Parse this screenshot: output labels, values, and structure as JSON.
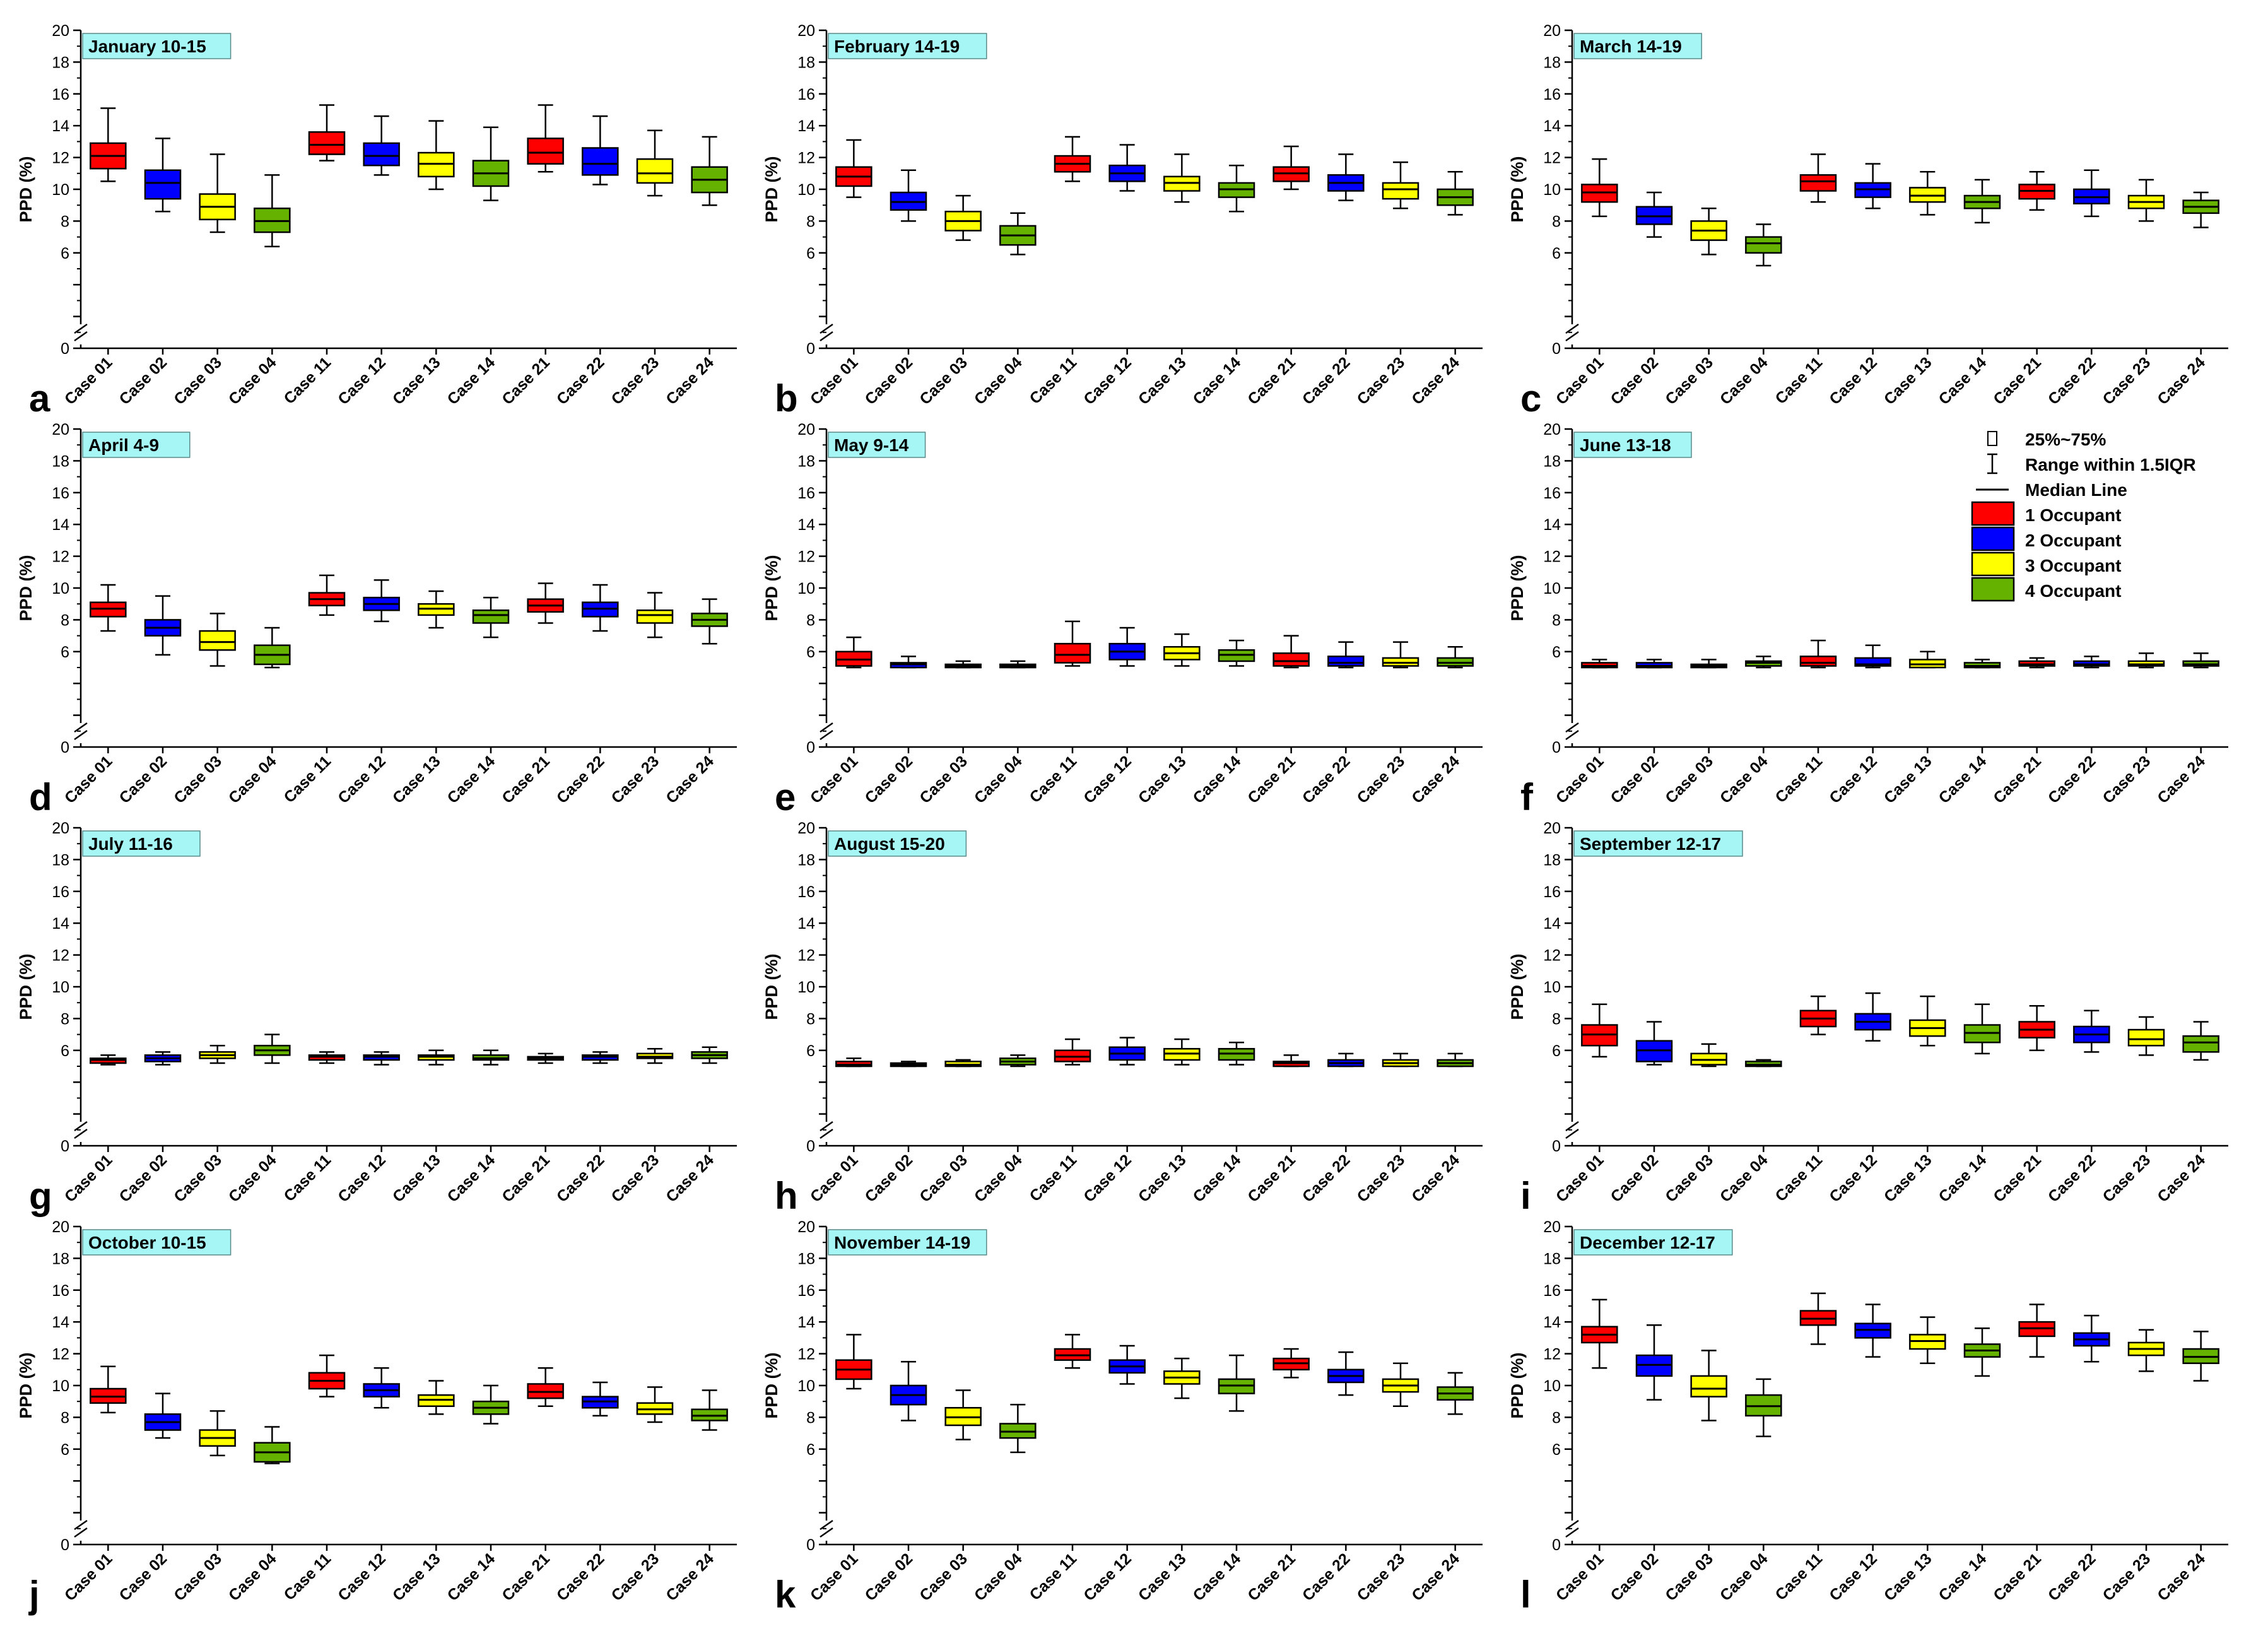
{
  "chart_data": {
    "type": "boxplot",
    "ylabel": "PPD (%)",
    "ylim": [
      0,
      20
    ],
    "yticks": [
      0,
      2,
      4,
      6,
      8,
      10,
      12,
      14,
      16,
      18,
      20
    ],
    "ytick_labels": [
      "0",
      "",
      "",
      "6",
      "8",
      "10",
      "12",
      "14",
      "16",
      "18",
      "20"
    ],
    "y_axis_break": true,
    "categories": [
      "Case 01",
      "Case 02",
      "Case 03",
      "Case 04",
      "Case 11",
      "Case 12",
      "Case 13",
      "Case 14",
      "Case 21",
      "Case 22",
      "Case 23",
      "Case 24"
    ],
    "category_groups": [
      "1 Occupant",
      "2 Occupant",
      "3 Occupant",
      "4 Occupant",
      "1 Occupant",
      "2 Occupant",
      "3 Occupant",
      "4 Occupant",
      "1 Occupant",
      "2 Occupant",
      "3 Occupant",
      "4 Occupant"
    ],
    "stat_order": [
      "whisker_low",
      "q1",
      "median",
      "q3",
      "whisker_high"
    ],
    "panels": [
      {
        "letter": "a",
        "title": "January 10-15",
        "boxes": [
          [
            10.5,
            11.3,
            12.1,
            12.9,
            15.1
          ],
          [
            8.6,
            9.4,
            10.4,
            11.2,
            13.2
          ],
          [
            7.3,
            8.1,
            8.9,
            9.7,
            12.2
          ],
          [
            6.4,
            7.3,
            8.0,
            8.8,
            10.9
          ],
          [
            11.8,
            12.2,
            12.8,
            13.6,
            15.3
          ],
          [
            10.9,
            11.5,
            12.1,
            12.9,
            14.6
          ],
          [
            10.0,
            10.8,
            11.6,
            12.3,
            14.3
          ],
          [
            9.3,
            10.2,
            11.0,
            11.8,
            13.9
          ],
          [
            11.1,
            11.6,
            12.3,
            13.2,
            15.3
          ],
          [
            10.3,
            10.9,
            11.6,
            12.6,
            14.6
          ],
          [
            9.6,
            10.4,
            11.0,
            11.9,
            13.7
          ],
          [
            9.0,
            9.8,
            10.6,
            11.4,
            13.3
          ]
        ]
      },
      {
        "letter": "b",
        "title": "February 14-19",
        "boxes": [
          [
            9.5,
            10.2,
            10.8,
            11.4,
            13.1
          ],
          [
            8.0,
            8.7,
            9.2,
            9.8,
            11.2
          ],
          [
            6.8,
            7.4,
            8.0,
            8.6,
            9.6
          ],
          [
            5.9,
            6.5,
            7.1,
            7.7,
            8.5
          ],
          [
            10.5,
            11.1,
            11.6,
            12.1,
            13.3
          ],
          [
            9.9,
            10.5,
            11.0,
            11.5,
            12.8
          ],
          [
            9.2,
            9.9,
            10.4,
            10.8,
            12.2
          ],
          [
            8.6,
            9.5,
            10.0,
            10.4,
            11.5
          ],
          [
            10.0,
            10.5,
            11.0,
            11.4,
            12.7
          ],
          [
            9.3,
            9.9,
            10.4,
            10.9,
            12.2
          ],
          [
            8.8,
            9.4,
            10.0,
            10.4,
            11.7
          ],
          [
            8.4,
            9.0,
            9.5,
            10.0,
            11.1
          ]
        ]
      },
      {
        "letter": "c",
        "title": "March 14-19",
        "boxes": [
          [
            8.3,
            9.2,
            9.8,
            10.3,
            11.9
          ],
          [
            7.0,
            7.8,
            8.3,
            8.9,
            9.8
          ],
          [
            5.9,
            6.8,
            7.4,
            8.0,
            8.8
          ],
          [
            5.2,
            6.0,
            6.6,
            7.0,
            7.8
          ],
          [
            9.2,
            9.9,
            10.5,
            10.9,
            12.2
          ],
          [
            8.8,
            9.5,
            10.0,
            10.4,
            11.6
          ],
          [
            8.4,
            9.2,
            9.6,
            10.1,
            11.1
          ],
          [
            7.9,
            8.8,
            9.2,
            9.6,
            10.6
          ],
          [
            8.7,
            9.4,
            9.9,
            10.3,
            11.1
          ],
          [
            8.3,
            9.1,
            9.5,
            10.0,
            11.2
          ],
          [
            8.0,
            8.8,
            9.2,
            9.6,
            10.6
          ],
          [
            7.6,
            8.5,
            8.9,
            9.3,
            9.8
          ]
        ]
      },
      {
        "letter": "d",
        "title": "April 4-9",
        "boxes": [
          [
            7.3,
            8.2,
            8.7,
            9.1,
            10.2
          ],
          [
            5.8,
            7.0,
            7.5,
            8.0,
            9.5
          ],
          [
            5.1,
            6.1,
            6.6,
            7.3,
            8.4
          ],
          [
            5.0,
            5.2,
            5.8,
            6.4,
            7.5
          ],
          [
            8.3,
            8.9,
            9.3,
            9.7,
            10.8
          ],
          [
            7.9,
            8.6,
            9.0,
            9.4,
            10.5
          ],
          [
            7.5,
            8.3,
            8.7,
            9.0,
            9.8
          ],
          [
            6.9,
            7.8,
            8.3,
            8.6,
            9.4
          ],
          [
            7.8,
            8.5,
            8.9,
            9.3,
            10.3
          ],
          [
            7.3,
            8.2,
            8.7,
            9.1,
            10.2
          ],
          [
            6.9,
            7.8,
            8.3,
            8.6,
            9.7
          ],
          [
            6.5,
            7.6,
            8.0,
            8.4,
            9.3
          ]
        ]
      },
      {
        "letter": "e",
        "title": "May 9-14",
        "boxes": [
          [
            5.0,
            5.1,
            5.5,
            6.0,
            6.9
          ],
          [
            5.0,
            5.0,
            5.2,
            5.3,
            5.7
          ],
          [
            5.0,
            5.0,
            5.1,
            5.2,
            5.4
          ],
          [
            5.0,
            5.0,
            5.1,
            5.2,
            5.4
          ],
          [
            5.1,
            5.3,
            5.8,
            6.5,
            7.9
          ],
          [
            5.1,
            5.5,
            6.0,
            6.5,
            7.5
          ],
          [
            5.1,
            5.5,
            5.9,
            6.3,
            7.1
          ],
          [
            5.1,
            5.4,
            5.8,
            6.1,
            6.7
          ],
          [
            5.0,
            5.1,
            5.4,
            5.9,
            7.0
          ],
          [
            5.0,
            5.1,
            5.3,
            5.7,
            6.6
          ],
          [
            5.0,
            5.1,
            5.3,
            5.6,
            6.6
          ],
          [
            5.0,
            5.1,
            5.3,
            5.6,
            6.3
          ]
        ]
      },
      {
        "letter": "f",
        "title": "June 13-18",
        "boxes": [
          [
            5.0,
            5.0,
            5.1,
            5.3,
            5.5
          ],
          [
            5.0,
            5.0,
            5.1,
            5.3,
            5.5
          ],
          [
            5.0,
            5.0,
            5.1,
            5.2,
            5.5
          ],
          [
            5.0,
            5.1,
            5.3,
            5.4,
            5.7
          ],
          [
            5.0,
            5.1,
            5.3,
            5.7,
            6.7
          ],
          [
            5.0,
            5.1,
            5.2,
            5.6,
            6.4
          ],
          [
            5.0,
            5.0,
            5.2,
            5.5,
            6.0
          ],
          [
            5.0,
            5.0,
            5.1,
            5.3,
            5.5
          ],
          [
            5.0,
            5.1,
            5.2,
            5.4,
            5.6
          ],
          [
            5.0,
            5.1,
            5.2,
            5.4,
            5.7
          ],
          [
            5.0,
            5.1,
            5.2,
            5.4,
            5.9
          ],
          [
            5.0,
            5.1,
            5.2,
            5.4,
            5.9
          ]
        ]
      },
      {
        "letter": "g",
        "title": "July 11-16",
        "boxes": [
          [
            5.1,
            5.2,
            5.4,
            5.5,
            5.7
          ],
          [
            5.1,
            5.3,
            5.5,
            5.7,
            5.9
          ],
          [
            5.2,
            5.5,
            5.7,
            5.9,
            6.3
          ],
          [
            5.2,
            5.7,
            6.0,
            6.3,
            7.0
          ],
          [
            5.2,
            5.4,
            5.6,
            5.7,
            5.9
          ],
          [
            5.1,
            5.4,
            5.6,
            5.7,
            5.9
          ],
          [
            5.1,
            5.4,
            5.6,
            5.7,
            6.0
          ],
          [
            5.1,
            5.4,
            5.5,
            5.7,
            6.0
          ],
          [
            5.2,
            5.4,
            5.5,
            5.6,
            5.8
          ],
          [
            5.2,
            5.4,
            5.6,
            5.7,
            5.9
          ],
          [
            5.2,
            5.5,
            5.6,
            5.8,
            6.1
          ],
          [
            5.2,
            5.5,
            5.7,
            5.9,
            6.2
          ]
        ]
      },
      {
        "letter": "h",
        "title": "August 15-20",
        "boxes": [
          [
            5.0,
            5.0,
            5.1,
            5.3,
            5.5
          ],
          [
            5.0,
            5.0,
            5.1,
            5.2,
            5.3
          ],
          [
            5.0,
            5.0,
            5.1,
            5.3,
            5.4
          ],
          [
            5.0,
            5.1,
            5.3,
            5.5,
            5.7
          ],
          [
            5.1,
            5.3,
            5.6,
            6.0,
            6.7
          ],
          [
            5.1,
            5.4,
            5.8,
            6.2,
            6.8
          ],
          [
            5.1,
            5.4,
            5.8,
            6.1,
            6.7
          ],
          [
            5.1,
            5.4,
            5.8,
            6.1,
            6.5
          ],
          [
            5.0,
            5.0,
            5.2,
            5.3,
            5.7
          ],
          [
            5.0,
            5.0,
            5.2,
            5.4,
            5.8
          ],
          [
            5.0,
            5.0,
            5.2,
            5.4,
            5.8
          ],
          [
            5.0,
            5.0,
            5.2,
            5.4,
            5.8
          ]
        ]
      },
      {
        "letter": "i",
        "title": "September 12-17",
        "boxes": [
          [
            5.6,
            6.3,
            7.0,
            7.6,
            8.9
          ],
          [
            5.1,
            5.3,
            6.0,
            6.6,
            7.8
          ],
          [
            5.0,
            5.1,
            5.4,
            5.8,
            6.4
          ],
          [
            5.0,
            5.0,
            5.1,
            5.3,
            5.4
          ],
          [
            7.0,
            7.5,
            8.0,
            8.5,
            9.4
          ],
          [
            6.6,
            7.3,
            7.8,
            8.3,
            9.6
          ],
          [
            6.3,
            6.9,
            7.4,
            7.9,
            9.4
          ],
          [
            5.8,
            6.5,
            7.1,
            7.6,
            8.9
          ],
          [
            6.0,
            6.8,
            7.3,
            7.8,
            8.8
          ],
          [
            5.9,
            6.5,
            7.0,
            7.5,
            8.5
          ],
          [
            5.7,
            6.3,
            6.7,
            7.3,
            8.1
          ],
          [
            5.4,
            5.9,
            6.5,
            6.9,
            7.8
          ]
        ]
      },
      {
        "letter": "j",
        "title": "October 10-15",
        "boxes": [
          [
            8.3,
            8.9,
            9.3,
            9.8,
            11.2
          ],
          [
            6.7,
            7.2,
            7.7,
            8.2,
            9.5
          ],
          [
            5.6,
            6.2,
            6.7,
            7.2,
            8.4
          ],
          [
            5.1,
            5.2,
            5.8,
            6.4,
            7.4
          ],
          [
            9.3,
            9.8,
            10.3,
            10.8,
            11.9
          ],
          [
            8.6,
            9.3,
            9.7,
            10.1,
            11.1
          ],
          [
            8.2,
            8.7,
            9.1,
            9.4,
            10.3
          ],
          [
            7.6,
            8.2,
            8.6,
            9.0,
            10.0
          ],
          [
            8.7,
            9.2,
            9.6,
            10.1,
            11.1
          ],
          [
            8.1,
            8.6,
            9.0,
            9.3,
            10.2
          ],
          [
            7.7,
            8.2,
            8.5,
            8.9,
            9.9
          ],
          [
            7.2,
            7.8,
            8.1,
            8.5,
            9.7
          ]
        ]
      },
      {
        "letter": "k",
        "title": "November 14-19",
        "boxes": [
          [
            9.8,
            10.4,
            11.0,
            11.6,
            13.2
          ],
          [
            7.8,
            8.8,
            9.4,
            10.0,
            11.5
          ],
          [
            6.6,
            7.5,
            8.0,
            8.6,
            9.7
          ],
          [
            5.8,
            6.7,
            7.1,
            7.6,
            8.8
          ],
          [
            11.1,
            11.6,
            11.9,
            12.3,
            13.2
          ],
          [
            10.1,
            10.8,
            11.2,
            11.6,
            12.5
          ],
          [
            9.2,
            10.1,
            10.5,
            10.9,
            11.7
          ],
          [
            8.4,
            9.5,
            10.0,
            10.4,
            11.9
          ],
          [
            10.5,
            11.0,
            11.4,
            11.7,
            12.3
          ],
          [
            9.4,
            10.2,
            10.6,
            11.0,
            12.1
          ],
          [
            8.7,
            9.6,
            10.0,
            10.4,
            11.4
          ],
          [
            8.2,
            9.1,
            9.5,
            9.9,
            10.8
          ]
        ]
      },
      {
        "letter": "l",
        "title": "December 12-17",
        "boxes": [
          [
            11.1,
            12.7,
            13.2,
            13.7,
            15.4
          ],
          [
            9.1,
            10.6,
            11.3,
            11.9,
            13.8
          ],
          [
            7.8,
            9.3,
            9.8,
            10.6,
            12.2
          ],
          [
            6.8,
            8.1,
            8.7,
            9.4,
            10.4
          ],
          [
            12.6,
            13.8,
            14.2,
            14.7,
            15.8
          ],
          [
            11.8,
            13.0,
            13.5,
            13.9,
            15.1
          ],
          [
            11.4,
            12.3,
            12.8,
            13.2,
            14.3
          ],
          [
            10.6,
            11.8,
            12.2,
            12.6,
            13.6
          ],
          [
            11.8,
            13.1,
            13.6,
            14.0,
            15.1
          ],
          [
            11.5,
            12.5,
            12.9,
            13.3,
            14.4
          ],
          [
            10.9,
            11.9,
            12.3,
            12.7,
            13.5
          ],
          [
            10.3,
            11.4,
            11.8,
            12.3,
            13.4
          ]
        ]
      }
    ],
    "legend": {
      "position": "inside panel f, top-right",
      "symbol_items": [
        {
          "symbol": "box",
          "label": "25%~75%"
        },
        {
          "symbol": "whisker",
          "label": "Range within 1.5IQR"
        },
        {
          "symbol": "line",
          "label": "Median Line"
        }
      ],
      "color_items": [
        {
          "label": "1 Occupant",
          "color": "#ff0000"
        },
        {
          "label": "2 Occupant",
          "color": "#0000ff"
        },
        {
          "label": "3 Occupant",
          "color": "#ffff00"
        },
        {
          "label": "4 Occupant",
          "color": "#66b200"
        }
      ]
    },
    "colors": {
      "title_box_fill": "#a6f6f6",
      "box_stroke": "#000000"
    }
  }
}
